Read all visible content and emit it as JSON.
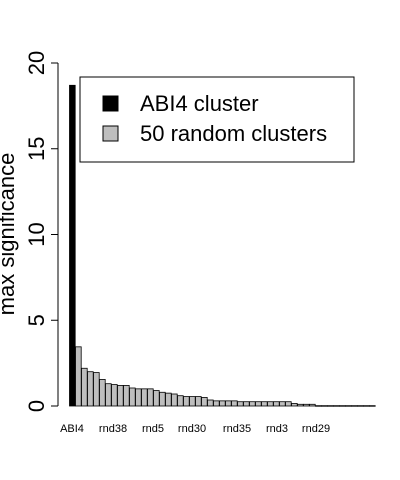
{
  "chart_data": {
    "type": "bar",
    "ylabel": "max significance",
    "ylim": [
      0,
      20
    ],
    "yticks": [
      0,
      5,
      10,
      15,
      20
    ],
    "axis_label_categories": [
      "ABI4",
      "rnd38",
      "rnd5",
      "rnd30",
      "rnd35",
      "rnd3",
      "rnd29"
    ],
    "legend": {
      "position": "top-right",
      "entries": [
        {
          "label": "ABI4 cluster",
          "color": "#000000"
        },
        {
          "label": "50 random clusters",
          "color": "#bebebe"
        }
      ]
    },
    "highlight": {
      "category": "ABI4",
      "value": 18.7,
      "color": "#000000"
    },
    "series": [
      {
        "values": [
          3.45,
          2.2,
          2.0,
          1.95,
          1.55,
          1.3,
          1.25,
          1.2,
          1.2,
          1.05,
          1.0,
          1.0,
          1.0,
          0.9,
          0.8,
          0.75,
          0.7,
          0.6,
          0.55,
          0.55,
          0.55,
          0.5,
          0.35,
          0.3,
          0.3,
          0.3,
          0.3,
          0.25,
          0.25,
          0.25,
          0.25,
          0.25,
          0.25,
          0.25,
          0.25,
          0.25,
          0.15,
          0.1,
          0.1,
          0.1,
          0.02,
          0.02,
          0.02,
          0.02,
          0.02,
          0.02,
          0.02,
          0.02,
          0.02,
          0.02
        ],
        "color": "#bebebe"
      }
    ]
  }
}
